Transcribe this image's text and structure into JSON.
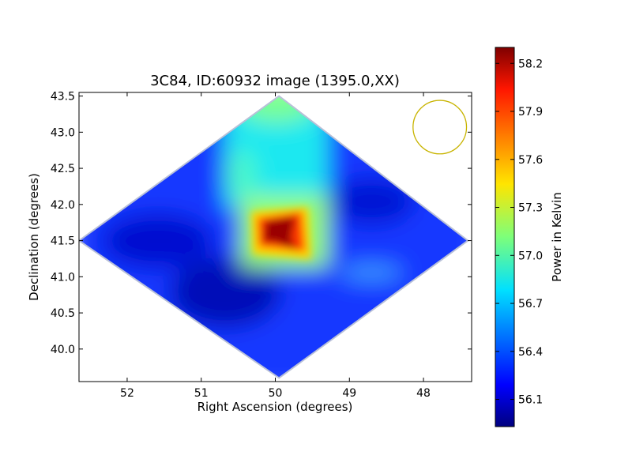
{
  "chart_data": {
    "type": "heatmap",
    "title": "3C84, ID:60932 image (1395.0,XX)",
    "xlabel": "Right Ascension (degrees)",
    "ylabel": "Declination (degrees)",
    "xlim": [
      52.65,
      47.35
    ],
    "ylim": [
      39.55,
      43.55
    ],
    "x_ticks": [
      52,
      51,
      50,
      49,
      48
    ],
    "x_tick_labels": [
      "52",
      "51",
      "50",
      "49",
      "48"
    ],
    "y_ticks": [
      40.0,
      40.5,
      41.0,
      41.5,
      42.0,
      42.5,
      43.0,
      43.5
    ],
    "y_tick_labels": [
      "40.0",
      "40.5",
      "41.0",
      "41.5",
      "42.0",
      "42.5",
      "43.0",
      "43.5"
    ],
    "colormap": "jet",
    "colorbar": {
      "label": "Power in Kelvin",
      "range": [
        55.93,
        58.3
      ],
      "ticks": [
        56.1,
        56.4,
        56.7,
        57.0,
        57.3,
        57.6,
        57.9,
        58.2
      ],
      "tick_labels": [
        "56.1",
        "56.4",
        "56.7",
        "57.0",
        "57.3",
        "57.6",
        "57.9",
        "58.2"
      ]
    },
    "footprint": {
      "shape": "diamond",
      "vertices": [
        [
          52.65,
          41.5
        ],
        [
          49.95,
          43.5
        ],
        [
          47.4,
          41.5
        ],
        [
          49.95,
          39.6
        ]
      ]
    },
    "source_peak": {
      "ra": 49.95,
      "dec": 41.5,
      "value": 58.25
    },
    "beam_circle": {
      "ra": 47.78,
      "dec": 43.07,
      "radius_deg": 0.37,
      "color": "#c8b400"
    },
    "approx_field_values": {
      "background": 56.2,
      "north_lobe": 56.9,
      "north_tip": 57.2,
      "central_patch": 57.4,
      "dark_south": 56.0
    }
  }
}
